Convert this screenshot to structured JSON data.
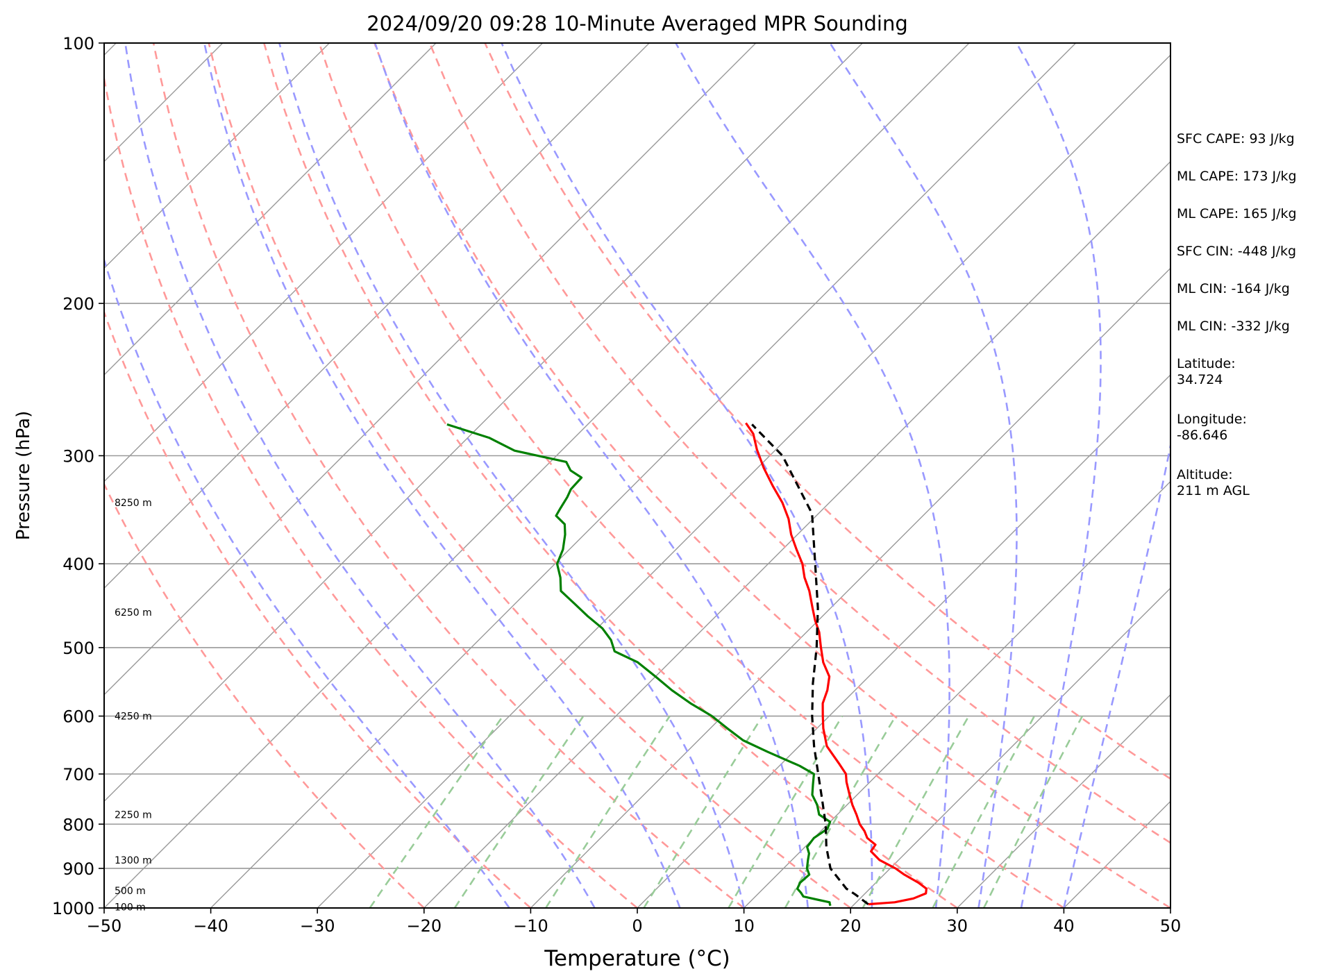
{
  "chart_data": {
    "type": "line",
    "title": "2024/09/20 09:28 10-Minute Averaged MPR Sounding",
    "xlabel": "Temperature (°C)",
    "ylabel": "Pressure (hPa)",
    "xlim": [
      -50,
      50
    ],
    "ylim": [
      1000,
      100
    ],
    "y_scale": "log",
    "skew": true,
    "grid": true,
    "x_ticks": [
      "−50",
      "−40",
      "−30",
      "−20",
      "−10",
      "0",
      "10",
      "20",
      "30",
      "40",
      "50"
    ],
    "y_ticks": [
      {
        "value": 100,
        "label": "100"
      },
      {
        "value": 200,
        "label": "200"
      },
      {
        "value": 300,
        "label": "300"
      },
      {
        "value": 400,
        "label": "400"
      },
      {
        "value": 500,
        "label": "500"
      },
      {
        "value": 600,
        "label": "600"
      },
      {
        "value": 700,
        "label": "700"
      },
      {
        "value": 800,
        "label": "800"
      },
      {
        "value": 900,
        "label": "900"
      },
      {
        "value": 1000,
        "label": "1000"
      }
    ],
    "height_labels": [
      {
        "pressure": 340,
        "label": "8250 m"
      },
      {
        "pressure": 455,
        "label": "6250 m"
      },
      {
        "pressure": 600,
        "label": "4250 m"
      },
      {
        "pressure": 780,
        "label": "2250 m"
      },
      {
        "pressure": 880,
        "label": "1300 m"
      },
      {
        "pressure": 955,
        "label": "500 m"
      },
      {
        "pressure": 997,
        "label": "100 m"
      }
    ],
    "colors": {
      "temperature": "#ff0000",
      "dewpoint": "#008000",
      "parcel": "#000000",
      "dry_adiabats": "#ff9999",
      "moist_adiabats": "#9999ff",
      "mixing_ratio": "#99cc99",
      "isotherms": "#999999"
    },
    "series": [
      {
        "key": "temperature",
        "points": [
          {
            "p": 990,
            "t": 21.3
          },
          {
            "p": 985,
            "t": 23.6
          },
          {
            "p": 975,
            "t": 25.0
          },
          {
            "p": 962,
            "t": 25.7
          },
          {
            "p": 950,
            "t": 25.3
          },
          {
            "p": 935,
            "t": 24.0
          },
          {
            "p": 915,
            "t": 21.9
          },
          {
            "p": 900,
            "t": 20.5
          },
          {
            "p": 880,
            "t": 18.2
          },
          {
            "p": 860,
            "t": 16.6
          },
          {
            "p": 845,
            "t": 16.4
          },
          {
            "p": 830,
            "t": 15.0
          },
          {
            "p": 815,
            "t": 14.1
          },
          {
            "p": 800,
            "t": 13.0
          },
          {
            "p": 780,
            "t": 11.8
          },
          {
            "p": 760,
            "t": 10.5
          },
          {
            "p": 740,
            "t": 9.3
          },
          {
            "p": 715,
            "t": 7.8
          },
          {
            "p": 700,
            "t": 7.0
          },
          {
            "p": 680,
            "t": 5.3
          },
          {
            "p": 650,
            "t": 2.6
          },
          {
            "p": 620,
            "t": 0.6
          },
          {
            "p": 600,
            "t": -0.6
          },
          {
            "p": 580,
            "t": -1.8
          },
          {
            "p": 560,
            "t": -2.6
          },
          {
            "p": 540,
            "t": -3.7
          },
          {
            "p": 520,
            "t": -5.6
          },
          {
            "p": 500,
            "t": -7.2
          },
          {
            "p": 480,
            "t": -8.8
          },
          {
            "p": 465,
            "t": -10.3
          },
          {
            "p": 450,
            "t": -11.7
          },
          {
            "p": 430,
            "t": -13.6
          },
          {
            "p": 415,
            "t": -15.3
          },
          {
            "p": 400,
            "t": -16.8
          },
          {
            "p": 385,
            "t": -18.7
          },
          {
            "p": 370,
            "t": -20.6
          },
          {
            "p": 355,
            "t": -22.3
          },
          {
            "p": 340,
            "t": -24.4
          },
          {
            "p": 325,
            "t": -26.9
          },
          {
            "p": 310,
            "t": -29.4
          },
          {
            "p": 295,
            "t": -31.8
          },
          {
            "p": 283,
            "t": -33.6
          },
          {
            "p": 275,
            "t": -35.3
          }
        ]
      },
      {
        "key": "dewpoint",
        "points": [
          {
            "p": 994,
            "t": 17.9
          },
          {
            "p": 990,
            "t": 17.7
          },
          {
            "p": 985,
            "t": 17.5
          },
          {
            "p": 978,
            "t": 16.1
          },
          {
            "p": 970,
            "t": 14.5
          },
          {
            "p": 960,
            "t": 13.9
          },
          {
            "p": 950,
            "t": 13.2
          },
          {
            "p": 935,
            "t": 12.9
          },
          {
            "p": 915,
            "t": 13.0
          },
          {
            "p": 900,
            "t": 12.2
          },
          {
            "p": 880,
            "t": 11.5
          },
          {
            "p": 865,
            "t": 11.0
          },
          {
            "p": 850,
            "t": 10.2
          },
          {
            "p": 830,
            "t": 10.0
          },
          {
            "p": 810,
            "t": 10.4
          },
          {
            "p": 795,
            "t": 10.0
          },
          {
            "p": 780,
            "t": 8.3
          },
          {
            "p": 760,
            "t": 7.2
          },
          {
            "p": 740,
            "t": 5.8
          },
          {
            "p": 720,
            "t": 4.9
          },
          {
            "p": 700,
            "t": 4.0
          },
          {
            "p": 685,
            "t": 1.9
          },
          {
            "p": 660,
            "t": -2.4
          },
          {
            "p": 640,
            "t": -5.8
          },
          {
            "p": 620,
            "t": -8.4
          },
          {
            "p": 600,
            "t": -11.0
          },
          {
            "p": 580,
            "t": -14.2
          },
          {
            "p": 560,
            "t": -17.2
          },
          {
            "p": 540,
            "t": -20.0
          },
          {
            "p": 520,
            "t": -23.0
          },
          {
            "p": 505,
            "t": -26.2
          },
          {
            "p": 490,
            "t": -27.6
          },
          {
            "p": 475,
            "t": -29.5
          },
          {
            "p": 460,
            "t": -32.0
          },
          {
            "p": 445,
            "t": -34.4
          },
          {
            "p": 430,
            "t": -36.9
          },
          {
            "p": 415,
            "t": -38.2
          },
          {
            "p": 400,
            "t": -39.8
          },
          {
            "p": 385,
            "t": -40.6
          },
          {
            "p": 370,
            "t": -41.8
          },
          {
            "p": 360,
            "t": -42.8
          },
          {
            "p": 352,
            "t": -44.4
          },
          {
            "p": 345,
            "t": -44.7
          },
          {
            "p": 335,
            "t": -45.1
          },
          {
            "p": 328,
            "t": -45.5
          },
          {
            "p": 318,
            "t": -45.6
          },
          {
            "p": 312,
            "t": -47.3
          },
          {
            "p": 305,
            "t": -48.5
          },
          {
            "p": 296,
            "t": -54.4
          },
          {
            "p": 286,
            "t": -58.0
          },
          {
            "p": 276,
            "t": -63.2
          }
        ]
      },
      {
        "key": "parcel",
        "points": [
          {
            "p": 990,
            "t": 21.3
          },
          {
            "p": 965,
            "t": 19.2
          },
          {
            "p": 950,
            "t": 17.8
          },
          {
            "p": 900,
            "t": 14.4
          },
          {
            "p": 850,
            "t": 12.0
          },
          {
            "p": 800,
            "t": 9.8
          },
          {
            "p": 750,
            "t": 7.2
          },
          {
            "p": 700,
            "t": 4.4
          },
          {
            "p": 650,
            "t": 1.4
          },
          {
            "p": 600,
            "t": -1.6
          },
          {
            "p": 550,
            "t": -4.6
          },
          {
            "p": 500,
            "t": -7.6
          },
          {
            "p": 450,
            "t": -11.2
          },
          {
            "p": 400,
            "t": -15.6
          },
          {
            "p": 350,
            "t": -20.6
          },
          {
            "p": 300,
            "t": -28.8
          },
          {
            "p": 276,
            "t": -34.6
          }
        ]
      }
    ],
    "dry_adiabats_theta_C": [
      -20,
      -10,
      0,
      10,
      20,
      30,
      40,
      50,
      60,
      70
    ],
    "moist_adiabats_Tsfc_C": [
      -12,
      -4,
      4,
      10,
      16,
      22,
      28,
      32,
      36,
      40
    ],
    "mixing_ratios_gkg": [
      0.5,
      1,
      2,
      4,
      7,
      10,
      16,
      24,
      32
    ]
  },
  "stats": [
    "SFC CAPE: 93 J/kg",
    "ML CAPE: 173 J/kg",
    "ML CAPE: 165 J/kg",
    "SFC CIN: -448 J/kg",
    "ML CIN: -164 J/kg",
    "ML CIN: -332 J/kg",
    "Latitude:\n34.724",
    "Longitude:\n-86.646",
    "Altitude:\n211 m AGL"
  ]
}
